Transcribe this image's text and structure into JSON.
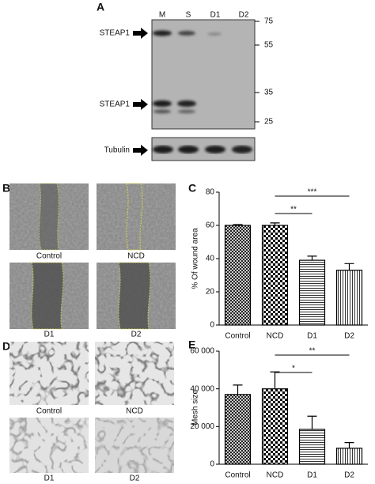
{
  "panels": {
    "A": {
      "letter": "A",
      "lanes": [
        "M",
        "S",
        "D1",
        "D2"
      ],
      "markers": [
        75,
        55,
        35,
        25
      ],
      "bands": [
        "STEAP1",
        "STEAP1",
        "Tubulin"
      ]
    },
    "B": {
      "letter": "B",
      "images": [
        "Control",
        "NCD",
        "D1",
        "D2"
      ]
    },
    "C": {
      "letter": "C"
    },
    "D": {
      "letter": "D",
      "images": [
        "Control",
        "NCD",
        "D1",
        "D2"
      ]
    },
    "E": {
      "letter": "E"
    }
  },
  "chart_data": [
    {
      "type": "bar",
      "ylabel": "% Of wound area",
      "categories": [
        "Control",
        "NCD",
        "D1",
        "D2"
      ],
      "values": [
        60,
        60,
        39,
        33
      ],
      "errors": [
        0.5,
        1.5,
        2.5,
        4
      ],
      "patterns": [
        "crosshatch",
        "checker",
        "hlines",
        "vlines"
      ],
      "color": "#000000",
      "ylim": [
        0,
        80
      ],
      "yticks": [
        0,
        20,
        40,
        60,
        80
      ],
      "annotations": [
        {
          "text": "**",
          "between": [
            "NCD",
            "D1"
          ]
        },
        {
          "text": "***",
          "between": [
            "NCD",
            "D2"
          ]
        }
      ]
    },
    {
      "type": "bar",
      "ylabel": "Mesh size",
      "categories": [
        "Control",
        "NCD",
        "D1",
        "D2"
      ],
      "values": [
        37000,
        40000,
        18500,
        8500
      ],
      "errors": [
        5000,
        9000,
        7000,
        3000
      ],
      "patterns": [
        "crosshatch",
        "checker",
        "hlines",
        "vlines"
      ],
      "color": "#000000",
      "ylim": [
        0,
        60000
      ],
      "yticks": [
        0,
        {
          "value": 20000,
          "label": "20 000"
        },
        {
          "value": 40000,
          "label": "40 000"
        },
        {
          "value": 60000,
          "label": "60 000"
        }
      ],
      "annotations": [
        {
          "text": "*",
          "between": [
            "NCD",
            "D1"
          ]
        },
        {
          "text": "**",
          "between": [
            "NCD",
            "D2"
          ]
        }
      ]
    }
  ]
}
